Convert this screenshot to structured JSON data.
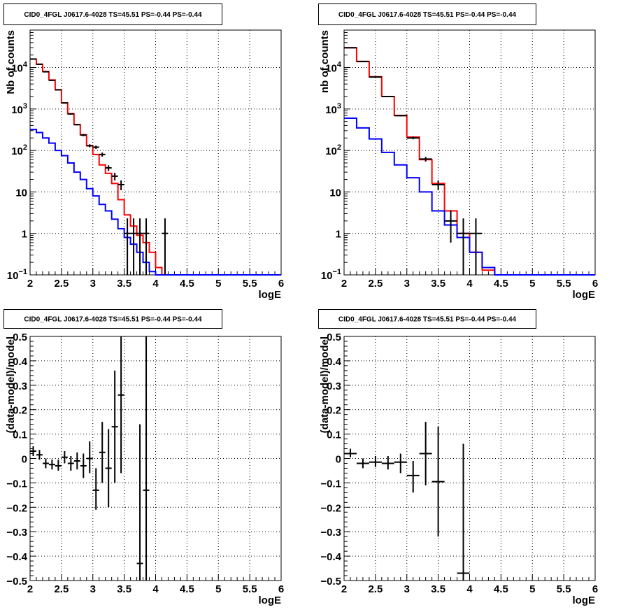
{
  "chart_data": [
    {
      "type": "histogram",
      "title": "CID0_4FGL J0617.6-4028 TS=45.51 PS=-0.44 PS=-0.44",
      "xlabel": "logE",
      "ylabel": "Nb of counts",
      "xlim": [
        2,
        6
      ],
      "ylim": [
        0.1,
        80000
      ],
      "yscale": "log",
      "grid": true,
      "xticks": [
        "2",
        "2.5",
        "3",
        "3.5",
        "4",
        "4.5",
        "5",
        "5.5",
        "6"
      ],
      "yticks": [
        {
          "v": 0.1,
          "label": "10⁻¹",
          "base": "10",
          "exp": "−1"
        },
        {
          "v": 1,
          "label": "1"
        },
        {
          "v": 10,
          "label": "10"
        },
        {
          "v": 100,
          "label": "10²",
          "base": "10",
          "exp": "2"
        },
        {
          "v": 1000,
          "label": "10³",
          "base": "10",
          "exp": "3"
        },
        {
          "v": 10000,
          "label": "10⁴",
          "base": "10",
          "exp": "4"
        }
      ],
      "bin_edges": [
        2.0,
        2.1,
        2.2,
        2.3,
        2.4,
        2.5,
        2.6,
        2.7,
        2.8,
        2.9,
        3.0,
        3.1,
        3.2,
        3.3,
        3.4,
        3.5,
        3.6,
        3.7,
        3.8,
        3.9,
        4.0,
        4.1,
        4.2,
        4.3,
        4.4,
        4.5,
        4.6,
        4.7,
        4.8,
        4.9,
        5.0,
        5.1,
        5.2,
        5.3,
        5.4,
        5.5,
        5.6,
        5.7,
        5.8,
        5.9,
        6.0
      ],
      "series": [
        {
          "color": "#ff0000",
          "style": "step",
          "values": [
            16000,
            12000,
            8000,
            5000,
            2900,
            1400,
            770,
            420,
            240,
            130,
            80,
            45,
            28,
            16,
            6.5,
            2.8,
            1.5,
            0.9,
            0.6,
            0.35,
            0.15,
            0.1,
            0.1,
            0.1,
            0.1,
            0.1,
            0.1,
            0.1,
            0.1,
            0.1,
            0.1,
            0.1,
            0.1,
            0.1,
            0.1,
            0.1,
            0.1,
            0.1,
            0.1,
            0.1
          ]
        },
        {
          "color": "#0000ff",
          "style": "step",
          "values": [
            320,
            270,
            200,
            150,
            100,
            75,
            50,
            30,
            20,
            12,
            8,
            5,
            3.5,
            2.2,
            1.3,
            0.8,
            0.55,
            0.35,
            0.2,
            0.12,
            0.1,
            0.1,
            0.1,
            0.1,
            0.1,
            0.1,
            0.1,
            0.1,
            0.1,
            0.1,
            0.1,
            0.1,
            0.1,
            0.1,
            0.1,
            0.1,
            0.1,
            0.1,
            0.1,
            0.1
          ]
        },
        {
          "color": "#000000",
          "style": "errorbar",
          "points": [
            {
              "x": 2.05,
              "y": 16000,
              "lo": 15800,
              "hi": 16200
            },
            {
              "x": 2.15,
              "y": 12000,
              "lo": 11800,
              "hi": 12200
            },
            {
              "x": 2.25,
              "y": 7900,
              "lo": 7800,
              "hi": 8000
            },
            {
              "x": 2.35,
              "y": 4900,
              "lo": 4800,
              "hi": 5000
            },
            {
              "x": 2.45,
              "y": 2900,
              "lo": 2850,
              "hi": 2950
            },
            {
              "x": 2.55,
              "y": 1400,
              "lo": 1360,
              "hi": 1440
            },
            {
              "x": 2.65,
              "y": 760,
              "lo": 730,
              "hi": 790
            },
            {
              "x": 2.75,
              "y": 420,
              "lo": 400,
              "hi": 440
            },
            {
              "x": 2.85,
              "y": 235,
              "lo": 220,
              "hi": 250
            },
            {
              "x": 2.95,
              "y": 130,
              "lo": 119,
              "hi": 141
            },
            {
              "x": 3.05,
              "y": 120,
              "lo": 109,
              "hi": 131
            },
            {
              "x": 3.15,
              "y": 80,
              "lo": 71,
              "hi": 89
            },
            {
              "x": 3.25,
              "y": 38,
              "lo": 32,
              "hi": 44
            },
            {
              "x": 3.35,
              "y": 24,
              "lo": 19,
              "hi": 29
            },
            {
              "x": 3.45,
              "y": 15,
              "lo": 11,
              "hi": 19
            },
            {
              "x": 3.55,
              "y": 1,
              "lo": 0.1,
              "hi": 2.3
            },
            {
              "x": 3.65,
              "y": 1,
              "lo": 0.1,
              "hi": 2.3
            },
            {
              "x": 3.75,
              "y": 1,
              "lo": 0.1,
              "hi": 2.3
            },
            {
              "x": 3.85,
              "y": 1,
              "lo": 0.1,
              "hi": 2.3
            },
            {
              "x": 4.15,
              "y": 1,
              "lo": 0.1,
              "hi": 2.3
            }
          ]
        }
      ]
    },
    {
      "type": "histogram",
      "title": "CID0_4FGL J0617.6-4028 TS=45.51 PS=-0.44 PS=-0.44",
      "xlabel": "logE",
      "ylabel": "nb of counts",
      "xlim": [
        2,
        6
      ],
      "ylim": [
        0.1,
        80000
      ],
      "yscale": "log",
      "grid": true,
      "xticks": [
        "2",
        "2.5",
        "3",
        "3.5",
        "4",
        "4.5",
        "5",
        "5.5",
        "6"
      ],
      "yticks": [
        {
          "v": 0.1,
          "label": "10⁻¹",
          "base": "10",
          "exp": "−1"
        },
        {
          "v": 1,
          "label": "1"
        },
        {
          "v": 10,
          "label": "10"
        },
        {
          "v": 100,
          "label": "10²",
          "base": "10",
          "exp": "2"
        },
        {
          "v": 1000,
          "label": "10³",
          "base": "10",
          "exp": "3"
        },
        {
          "v": 10000,
          "label": "10⁴",
          "base": "10",
          "exp": "4"
        }
      ],
      "bin_edges": [
        2.0,
        2.2,
        2.4,
        2.6,
        2.8,
        3.0,
        3.2,
        3.4,
        3.6,
        3.8,
        4.0,
        4.2,
        4.4,
        4.6,
        4.8,
        5.0,
        5.2,
        5.4,
        5.6,
        5.8,
        6.0
      ],
      "series": [
        {
          "color": "#ff0000",
          "style": "step",
          "values": [
            30000,
            14000,
            6000,
            2000,
            700,
            210,
            60,
            16,
            3.5,
            1,
            0.35,
            0.13,
            0.1,
            0.1,
            0.1,
            0.1,
            0.1,
            0.1,
            0.1,
            0.1
          ]
        },
        {
          "color": "#0000ff",
          "style": "step",
          "values": [
            600,
            350,
            190,
            90,
            45,
            22,
            10,
            3.5,
            1.6,
            0.8,
            0.35,
            0.15,
            0.1,
            0.1,
            0.1,
            0.1,
            0.1,
            0.1,
            0.1,
            0.1
          ]
        },
        {
          "color": "#000000",
          "style": "errorbar",
          "points": [
            {
              "x": 2.1,
              "y": 30000,
              "lo": 29700,
              "hi": 30300
            },
            {
              "x": 2.3,
              "y": 14000,
              "lo": 13850,
              "hi": 14150
            },
            {
              "x": 2.5,
              "y": 5900,
              "lo": 5820,
              "hi": 5980
            },
            {
              "x": 2.7,
              "y": 2000,
              "lo": 1950,
              "hi": 2050
            },
            {
              "x": 2.9,
              "y": 690,
              "lo": 665,
              "hi": 715
            },
            {
              "x": 3.1,
              "y": 200,
              "lo": 186,
              "hi": 214
            },
            {
              "x": 3.3,
              "y": 62,
              "lo": 54,
              "hi": 70
            },
            {
              "x": 3.5,
              "y": 15,
              "lo": 11,
              "hi": 19
            },
            {
              "x": 3.7,
              "y": 2,
              "lo": 0.6,
              "hi": 3.6
            },
            {
              "x": 3.9,
              "y": 1,
              "lo": 0.1,
              "hi": 2.3
            },
            {
              "x": 4.1,
              "y": 1,
              "lo": 0.1,
              "hi": 2.3
            }
          ]
        }
      ]
    },
    {
      "type": "errorbar",
      "title": "CID0_4FGL J0617.6-4028 TS=45.51 PS=-0.44 PS=-0.44",
      "xlabel": "logE",
      "ylabel": "(data-model)/model",
      "xlim": [
        2,
        6
      ],
      "ylim": [
        -0.5,
        0.5
      ],
      "yscale": "linear",
      "grid": true,
      "xticks": [
        "2",
        "2.5",
        "3",
        "3.5",
        "4",
        "4.5",
        "5",
        "5.5",
        "6"
      ],
      "yticks": [
        {
          "v": -0.5,
          "label": "−0.5"
        },
        {
          "v": -0.4,
          "label": "−0.4"
        },
        {
          "v": -0.3,
          "label": "−0.3"
        },
        {
          "v": -0.2,
          "label": "−0.2"
        },
        {
          "v": -0.1,
          "label": "−0.1"
        },
        {
          "v": 0,
          "label": "0"
        },
        {
          "v": 0.1,
          "label": "0.1"
        },
        {
          "v": 0.2,
          "label": "0.2"
        },
        {
          "v": 0.3,
          "label": "0.3"
        },
        {
          "v": 0.4,
          "label": "0.4"
        },
        {
          "v": 0.5,
          "label": "0.5"
        }
      ],
      "xerr": 0.05,
      "series": [
        {
          "color": "#000000",
          "points": [
            {
              "x": 2.05,
              "y": 0.03,
              "lo": 0.01,
              "hi": 0.05
            },
            {
              "x": 2.15,
              "y": 0.015,
              "lo": -0.005,
              "hi": 0.035
            },
            {
              "x": 2.25,
              "y": -0.02,
              "lo": -0.04,
              "hi": 0.0
            },
            {
              "x": 2.35,
              "y": -0.025,
              "lo": -0.045,
              "hi": -0.005
            },
            {
              "x": 2.45,
              "y": -0.03,
              "lo": -0.05,
              "hi": -0.005
            },
            {
              "x": 2.55,
              "y": 0.005,
              "lo": -0.02,
              "hi": 0.03
            },
            {
              "x": 2.65,
              "y": -0.02,
              "lo": -0.05,
              "hi": 0.01
            },
            {
              "x": 2.75,
              "y": -0.01,
              "lo": -0.045,
              "hi": 0.025
            },
            {
              "x": 2.85,
              "y": -0.03,
              "lo": -0.08,
              "hi": 0.02
            },
            {
              "x": 2.95,
              "y": 0.0,
              "lo": -0.06,
              "hi": 0.07
            },
            {
              "x": 3.05,
              "y": -0.13,
              "lo": -0.21,
              "hi": -0.04
            },
            {
              "x": 3.15,
              "y": 0.025,
              "lo": -0.1,
              "hi": 0.15
            },
            {
              "x": 3.25,
              "y": -0.04,
              "lo": -0.2,
              "hi": 0.12
            },
            {
              "x": 3.35,
              "y": 0.13,
              "lo": -0.1,
              "hi": 0.36
            },
            {
              "x": 3.45,
              "y": 0.26,
              "lo": -0.06,
              "hi": 0.5
            },
            {
              "x": 3.75,
              "y": -0.43,
              "lo": -0.5,
              "hi": 0.14
            },
            {
              "x": 3.85,
              "y": -0.13,
              "lo": -0.5,
              "hi": 0.5
            }
          ]
        }
      ]
    },
    {
      "type": "errorbar",
      "title": "CID0_4FGL J0617.6-4028 TS=45.51 PS=-0.44 PS=-0.44",
      "xlabel": "logE",
      "ylabel": "(data-model)/model",
      "xlim": [
        2,
        6
      ],
      "ylim": [
        -0.5,
        0.5
      ],
      "yscale": "linear",
      "grid": true,
      "xticks": [
        "2",
        "2.5",
        "3",
        "3.5",
        "4",
        "4.5",
        "5",
        "5.5",
        "6"
      ],
      "yticks": [
        {
          "v": -0.5,
          "label": "−0.5"
        },
        {
          "v": -0.4,
          "label": "−0.4"
        },
        {
          "v": -0.3,
          "label": "−0.3"
        },
        {
          "v": -0.2,
          "label": "−0.2"
        },
        {
          "v": -0.1,
          "label": "−0.1"
        },
        {
          "v": 0,
          "label": "0"
        },
        {
          "v": 0.1,
          "label": "0.1"
        },
        {
          "v": 0.2,
          "label": "0.2"
        },
        {
          "v": 0.3,
          "label": "0.3"
        },
        {
          "v": 0.4,
          "label": "0.4"
        },
        {
          "v": 0.5,
          "label": "0.5"
        }
      ],
      "xerr": 0.1,
      "series": [
        {
          "color": "#000000",
          "points": [
            {
              "x": 2.1,
              "y": 0.02,
              "lo": 0.005,
              "hi": 0.04
            },
            {
              "x": 2.3,
              "y": -0.02,
              "lo": -0.04,
              "hi": 0.0
            },
            {
              "x": 2.5,
              "y": -0.015,
              "lo": -0.035,
              "hi": 0.01
            },
            {
              "x": 2.7,
              "y": -0.02,
              "lo": -0.045,
              "hi": 0.01
            },
            {
              "x": 2.9,
              "y": -0.015,
              "lo": -0.06,
              "hi": 0.02
            },
            {
              "x": 3.1,
              "y": -0.07,
              "lo": -0.14,
              "hi": -0.01
            },
            {
              "x": 3.3,
              "y": 0.02,
              "lo": -0.11,
              "hi": 0.15
            },
            {
              "x": 3.5,
              "y": -0.095,
              "lo": -0.32,
              "hi": 0.13
            },
            {
              "x": 3.9,
              "y": -0.47,
              "lo": -0.5,
              "hi": 0.06
            }
          ]
        }
      ]
    }
  ]
}
